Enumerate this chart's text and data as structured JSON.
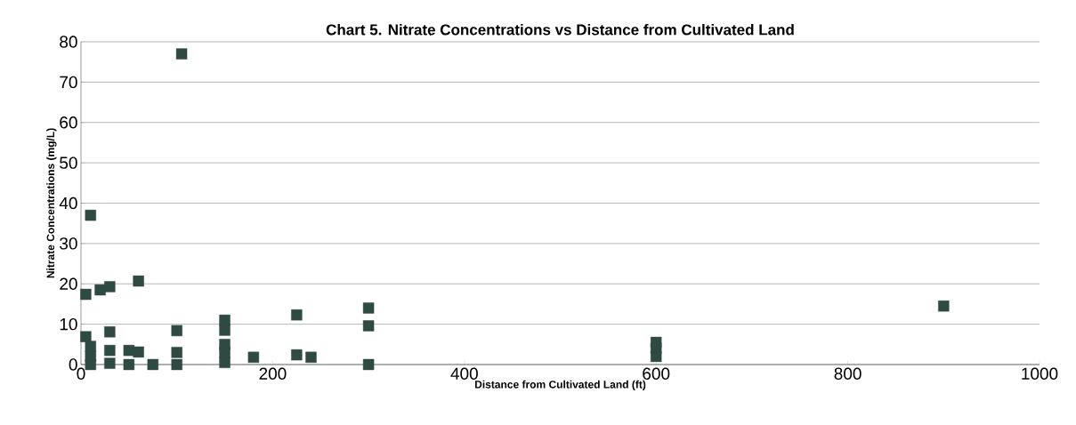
{
  "chart_data": {
    "type": "scatter",
    "title": "Chart 5.  Nitrate Concentrations vs Distance from Cultivated Land",
    "xlabel": "Distance from Cultivated Land (ft)",
    "ylabel": "Nitrate Concentrations (mg/L)",
    "x": [
      10,
      5,
      20,
      30,
      60,
      5,
      10,
      10,
      10,
      30,
      30,
      30,
      50,
      60,
      50,
      75,
      100,
      100,
      100,
      105,
      150,
      150,
      150,
      150,
      150,
      180,
      225,
      225,
      240,
      300,
      300,
      300,
      600,
      600,
      600,
      900
    ],
    "values": [
      37,
      17.4,
      18.5,
      19.3,
      20.7,
      6.9,
      4.5,
      2,
      0,
      8.1,
      3.5,
      0.3,
      3.5,
      3.1,
      0,
      0,
      8.4,
      3,
      0,
      77,
      11,
      8.5,
      5,
      3,
      0.5,
      1.8,
      12.3,
      2.4,
      1.8,
      14,
      9.6,
      0,
      5.5,
      4,
      2,
      14.5
    ],
    "color": "#2f4a43",
    "marker": "square",
    "grid": "y",
    "xlim": [
      0,
      1000
    ],
    "ylim": [
      0,
      80
    ],
    "xticks": [
      0,
      200,
      400,
      600,
      800,
      1000
    ],
    "yticks": [
      0,
      10,
      20,
      30,
      40,
      50,
      60,
      70,
      80
    ]
  }
}
